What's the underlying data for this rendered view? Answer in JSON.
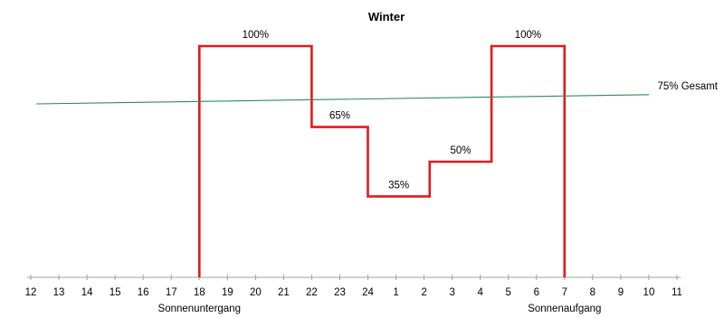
{
  "chart_data": {
    "type": "line",
    "title": "Winter",
    "x_ticks": [
      "12",
      "13",
      "14",
      "15",
      "16",
      "17",
      "18",
      "19",
      "20",
      "21",
      "22",
      "23",
      "24",
      "1",
      "2",
      "3",
      "4",
      "5",
      "6",
      "7",
      "8",
      "9",
      "10",
      "11"
    ],
    "series": [
      {
        "name": "",
        "color": "#e3191b",
        "step": true,
        "points": [
          {
            "t": 18,
            "v": 0
          },
          {
            "t": 18,
            "v": 100
          },
          {
            "t": 22,
            "v": 100
          },
          {
            "t": 22,
            "v": 65
          },
          {
            "t": 24,
            "v": 65
          },
          {
            "t": 24,
            "v": 35
          },
          {
            "t": 26.2,
            "v": 35
          },
          {
            "t": 26.2,
            "v": 50
          },
          {
            "t": 28.4,
            "v": 50
          },
          {
            "t": 28.4,
            "v": 100
          },
          {
            "t": 31,
            "v": 100
          },
          {
            "t": 31,
            "v": 0
          }
        ]
      },
      {
        "name": "75% Gesamt",
        "color": "#2e8b57",
        "points": [
          {
            "t": 12.2,
            "v": 75
          },
          {
            "t": 34,
            "v": 79
          }
        ]
      }
    ],
    "data_labels": [
      {
        "text": "100%",
        "t": 20,
        "v": 100
      },
      {
        "text": "65%",
        "t": 23,
        "v": 65
      },
      {
        "text": "35%",
        "t": 25.1,
        "v": 35
      },
      {
        "text": "50%",
        "t": 27.3,
        "v": 50
      },
      {
        "text": "100%",
        "t": 29.7,
        "v": 100
      }
    ],
    "annotations": [
      {
        "text": "Sonnenuntergang",
        "t": 18
      },
      {
        "text": "Sonnenaufgang",
        "t": 31
      }
    ],
    "ylim": [
      0,
      100
    ],
    "grid": false,
    "legend": "none"
  }
}
